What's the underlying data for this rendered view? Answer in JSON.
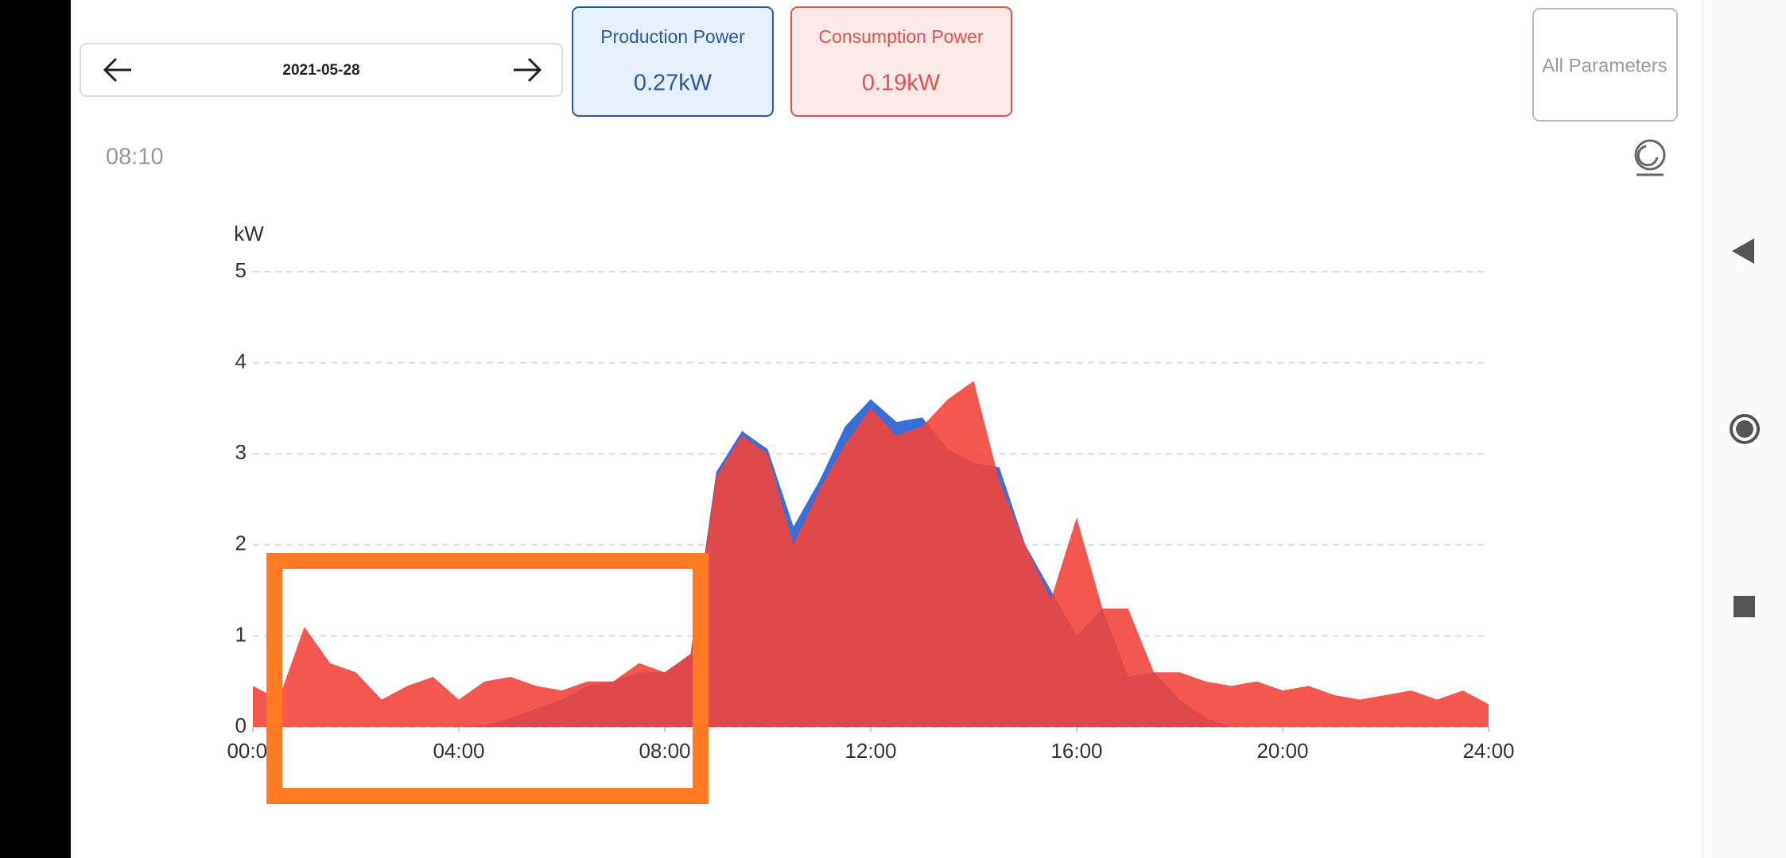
{
  "header": {
    "date": "2021-05-28",
    "time": "08:10",
    "all_parameters": "All Parameters"
  },
  "cards": [
    {
      "title": "Production Power",
      "value": "0.27kW"
    },
    {
      "title": "Consumption Power",
      "value": "0.19kW"
    }
  ],
  "chart_data": {
    "type": "area",
    "y_label": "kW",
    "x": [
      0,
      0.5,
      1,
      1.5,
      2,
      2.5,
      3,
      3.5,
      4,
      4.5,
      5,
      5.5,
      6,
      6.5,
      7,
      7.5,
      8,
      8.5,
      9,
      9.5,
      10,
      10.5,
      11,
      11.5,
      12,
      12.5,
      13,
      13.5,
      14,
      14.5,
      15,
      15.5,
      16,
      16.5,
      17,
      17.5,
      18,
      18.5,
      19,
      19.5,
      20,
      20.5,
      21,
      21.5,
      22,
      22.5,
      23,
      23.5,
      24
    ],
    "series": [
      {
        "name": "Production Power",
        "color": "#3a6fd8",
        "values": [
          0,
          0,
          0,
          0,
          0,
          0,
          0,
          0,
          0,
          0.02,
          0.1,
          0.2,
          0.3,
          0.45,
          0.5,
          0.6,
          0.6,
          0.8,
          2.8,
          3.25,
          3.05,
          2.2,
          2.7,
          3.3,
          3.6,
          3.35,
          3.4,
          3.05,
          2.9,
          2.85,
          2.0,
          1.5,
          1.0,
          1.3,
          0.55,
          0.6,
          0.3,
          0.1,
          0,
          0,
          0,
          0,
          0,
          0,
          0,
          0,
          0,
          0,
          0
        ]
      },
      {
        "name": "Consumption Power",
        "color": "#f2453d",
        "values": [
          0.45,
          0.3,
          1.1,
          0.7,
          0.6,
          0.3,
          0.45,
          0.55,
          0.3,
          0.5,
          0.55,
          0.45,
          0.4,
          0.5,
          0.5,
          0.7,
          0.6,
          0.8,
          2.75,
          3.2,
          3.0,
          2.0,
          2.6,
          3.1,
          3.5,
          3.2,
          3.3,
          3.6,
          3.8,
          2.7,
          2.0,
          1.4,
          2.3,
          1.3,
          1.3,
          0.6,
          0.6,
          0.5,
          0.45,
          0.5,
          0.4,
          0.45,
          0.35,
          0.3,
          0.35,
          0.4,
          0.3,
          0.4,
          0.25
        ]
      }
    ],
    "xlim": [
      0,
      24
    ],
    "xticks": [
      {
        "value": 0,
        "label": "00:00"
      },
      {
        "value": 4,
        "label": "04:00"
      },
      {
        "value": 8,
        "label": "08:00"
      },
      {
        "value": 12,
        "label": "12:00"
      },
      {
        "value": 16,
        "label": "16:00"
      },
      {
        "value": 20,
        "label": "20:00"
      },
      {
        "value": 24,
        "label": "24:00"
      }
    ],
    "ylim": [
      0,
      5
    ],
    "yticks": [
      0,
      1,
      2,
      3,
      4,
      5
    ],
    "grid": true
  }
}
